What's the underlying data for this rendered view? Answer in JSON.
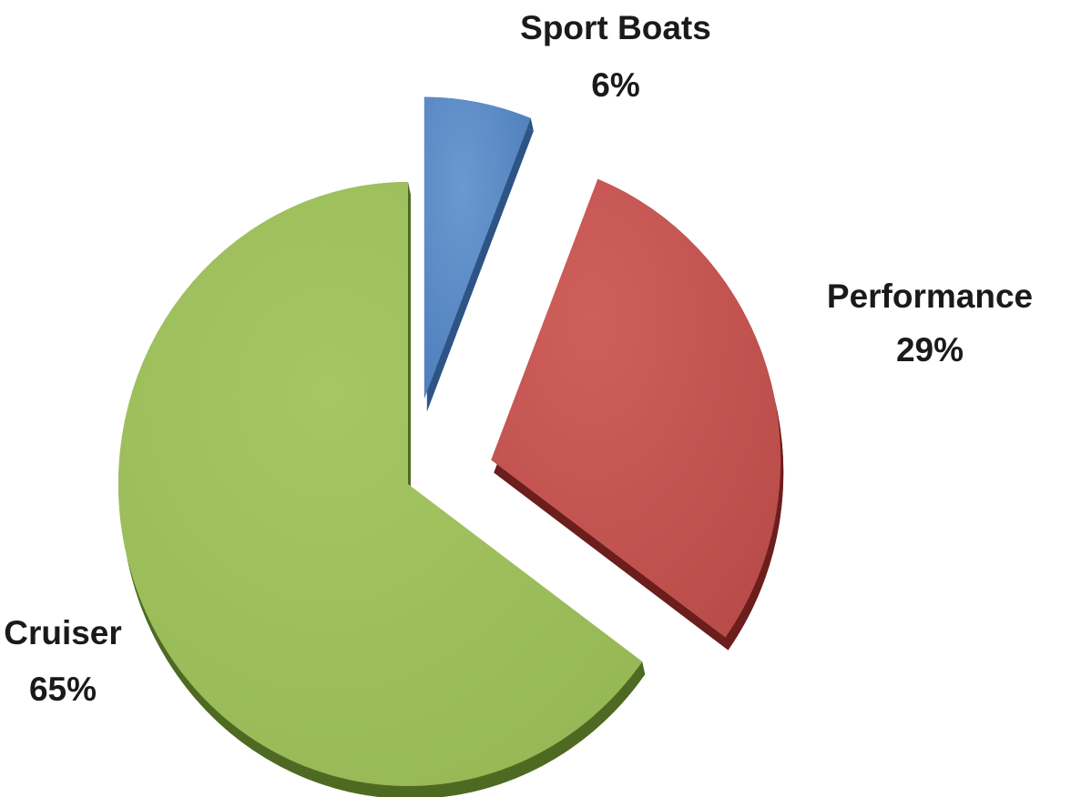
{
  "chart_data": {
    "type": "pie",
    "title": "",
    "slices": [
      {
        "label": "Sport Boats",
        "value": 6,
        "percent_text": "6%",
        "color": "#4f81bd",
        "side_color": "#2e5485",
        "exploded": true
      },
      {
        "label": "Performance",
        "value": 29,
        "percent_text": "29%",
        "color": "#c0504d",
        "side_color": "#6b1e1c",
        "exploded": true
      },
      {
        "label": "Cruiser",
        "value": 65,
        "percent_text": "65%",
        "color": "#9bbb59",
        "side_color": "#4e6a22",
        "exploded": false
      }
    ],
    "start_angle_deg": 0,
    "direction": "clockwise",
    "style": "3d-exploded",
    "legend": "none",
    "data_labels": "category-and-percent"
  }
}
